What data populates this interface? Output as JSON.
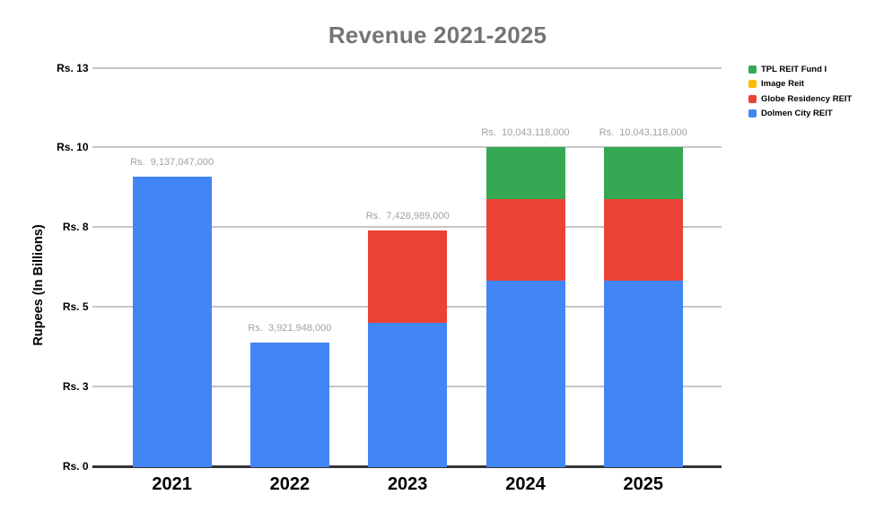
{
  "chart_data": {
    "type": "bar",
    "stacked": true,
    "title": "Revenue 2021-2025",
    "xlabel": "",
    "ylabel": "Rupees (In Billions)",
    "values_unit": "billions of rupees",
    "categories": [
      "2021",
      "2022",
      "2023",
      "2024",
      "2025"
    ],
    "series": [
      {
        "name": "Dolmen City REIT",
        "color": "#4285F4",
        "values": [
          9.137047,
          3.921948,
          4.53,
          5.85,
          5.85
        ]
      },
      {
        "name": "Globe Residency REIT",
        "color": "#EA4335",
        "values": [
          0,
          0,
          2.896989,
          2.58,
          2.58
        ]
      },
      {
        "name": "Image Reit",
        "color": "#FBBC04",
        "values": [
          0,
          0,
          0,
          0,
          0
        ]
      },
      {
        "name": "TPL REIT Fund I",
        "color": "#34A853",
        "values": [
          0,
          0,
          0,
          1.613118,
          1.613118
        ]
      }
    ],
    "totals": [
      9.137047,
      3.921948,
      7.426989,
      10.043118,
      10.043118
    ],
    "total_labels": [
      "Rs.  9,137,047,000",
      "Rs.  3,921,948,000",
      "Rs.  7,426,989,000",
      "Rs.  10,043,118,000",
      "Rs.  10,043,118,000"
    ],
    "y_ticks": [
      {
        "value": 0,
        "label": "Rs. 0"
      },
      {
        "value": 2.5,
        "label": "Rs. 3"
      },
      {
        "value": 5,
        "label": "Rs. 5"
      },
      {
        "value": 7.5,
        "label": "Rs. 8"
      },
      {
        "value": 10,
        "label": "Rs. 10"
      },
      {
        "value": 12.5,
        "label": "Rs. 13"
      }
    ],
    "ylim": [
      0,
      12.5
    ],
    "grid": true,
    "legend_position": "top-right",
    "legend_items_top_to_bottom": [
      "TPL REIT Fund I",
      "Image Reit",
      "Globe Residency REIT",
      "Dolmen City REIT"
    ]
  },
  "colors": {
    "background": "#ffffff",
    "title_text": "#757575",
    "axis_line": "#333333",
    "gridline": "#c6c6c6",
    "tick_label_text": "#000000",
    "total_label_text": "#a1a1a1",
    "legend_text": "#000000"
  }
}
